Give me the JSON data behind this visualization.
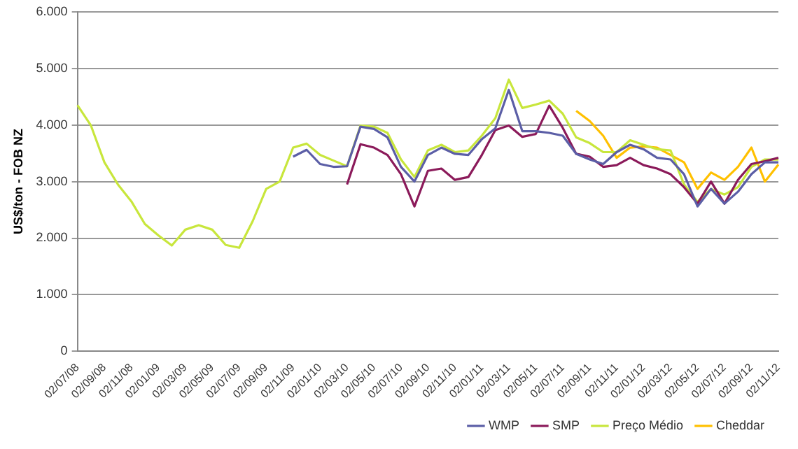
{
  "chart_data": {
    "type": "line",
    "ylabel": "US$/ton - FOB NZ",
    "categories": [
      "02/07/08",
      null,
      "02/09/08",
      null,
      "02/11/08",
      null,
      "02/01/09",
      null,
      "02/03/09",
      null,
      "02/05/09",
      null,
      "02/07/09",
      null,
      "02/09/09",
      null,
      "02/11/09",
      null,
      "02/01/10",
      null,
      "02/03/10",
      null,
      "02/05/10",
      null,
      "02/07/10",
      null,
      "02/09/10",
      null,
      "02/11/10",
      null,
      "02/01/11",
      null,
      "02/03/11",
      null,
      "02/05/11",
      null,
      "02/07/11",
      null,
      "02/09/11",
      null,
      "02/11/11",
      null,
      "02/01/12",
      null,
      "02/03/12",
      null,
      "02/05/12",
      null,
      "02/07/12",
      null,
      "02/09/12",
      null,
      "02/11/12"
    ],
    "series": [
      {
        "name": "WMP",
        "color": "#5b5ea6",
        "values": [
          null,
          null,
          null,
          null,
          null,
          null,
          null,
          null,
          null,
          null,
          null,
          null,
          null,
          null,
          null,
          null,
          3440,
          3560,
          3310,
          3260,
          3270,
          3970,
          3930,
          3780,
          3260,
          3000,
          3470,
          3600,
          3490,
          3470,
          3750,
          3940,
          4620,
          3890,
          3890,
          3860,
          3810,
          3490,
          3390,
          3310,
          3520,
          3650,
          3570,
          3420,
          3390,
          3130,
          2560,
          2870,
          2610,
          2820,
          3130,
          3340,
          3340
        ]
      },
      {
        "name": "SMP",
        "color": "#8b1a5a",
        "values": [
          null,
          null,
          null,
          null,
          null,
          null,
          null,
          null,
          null,
          null,
          null,
          null,
          null,
          null,
          null,
          null,
          null,
          null,
          null,
          null,
          2950,
          3660,
          3600,
          3470,
          3130,
          2560,
          3190,
          3230,
          3030,
          3080,
          3470,
          3910,
          3990,
          3790,
          3840,
          4340,
          3950,
          3490,
          3440,
          3260,
          3290,
          3420,
          3290,
          3230,
          3130,
          2900,
          2610,
          3000,
          2610,
          3030,
          3310,
          3360,
          3420
        ]
      },
      {
        "name": "Preço Médio",
        "color": "#c8e63c",
        "values": [
          4350,
          3990,
          3340,
          2950,
          2650,
          2250,
          2050,
          1870,
          2150,
          2230,
          2150,
          1880,
          1830,
          2300,
          2870,
          3000,
          3600,
          3670,
          3470,
          3370,
          3270,
          3990,
          3970,
          3860,
          3390,
          3080,
          3550,
          3650,
          3520,
          3550,
          3810,
          4120,
          4800,
          4300,
          4360,
          4430,
          4200,
          3780,
          3680,
          3520,
          3520,
          3730,
          3650,
          3570,
          3550,
          2950,
          2640,
          2870,
          2770,
          2900,
          3260,
          3390,
          3390
        ]
      },
      {
        "name": "Cheddar",
        "color": "#ffc000",
        "values": [
          null,
          null,
          null,
          null,
          null,
          null,
          null,
          null,
          null,
          null,
          null,
          null,
          null,
          null,
          null,
          null,
          null,
          null,
          null,
          null,
          null,
          null,
          null,
          null,
          null,
          null,
          null,
          null,
          null,
          null,
          null,
          null,
          null,
          null,
          null,
          null,
          null,
          4250,
          4070,
          3810,
          3420,
          3600,
          3620,
          3600,
          3470,
          3340,
          2870,
          3160,
          3030,
          3260,
          3600,
          3000,
          3300
        ]
      }
    ],
    "ylim": [
      0,
      6000
    ],
    "yticks": [
      {
        "value": 0,
        "label": "0"
      },
      {
        "value": 1000,
        "label": "1.000"
      },
      {
        "value": 2000,
        "label": "2.000"
      },
      {
        "value": 3000,
        "label": "3.000"
      },
      {
        "value": 4000,
        "label": "4.000"
      },
      {
        "value": 5000,
        "label": "5.000"
      },
      {
        "value": 6000,
        "label": "6.000"
      }
    ],
    "grid": "y",
    "legend": "bottom right",
    "marker": "none",
    "line_style": "solid"
  }
}
